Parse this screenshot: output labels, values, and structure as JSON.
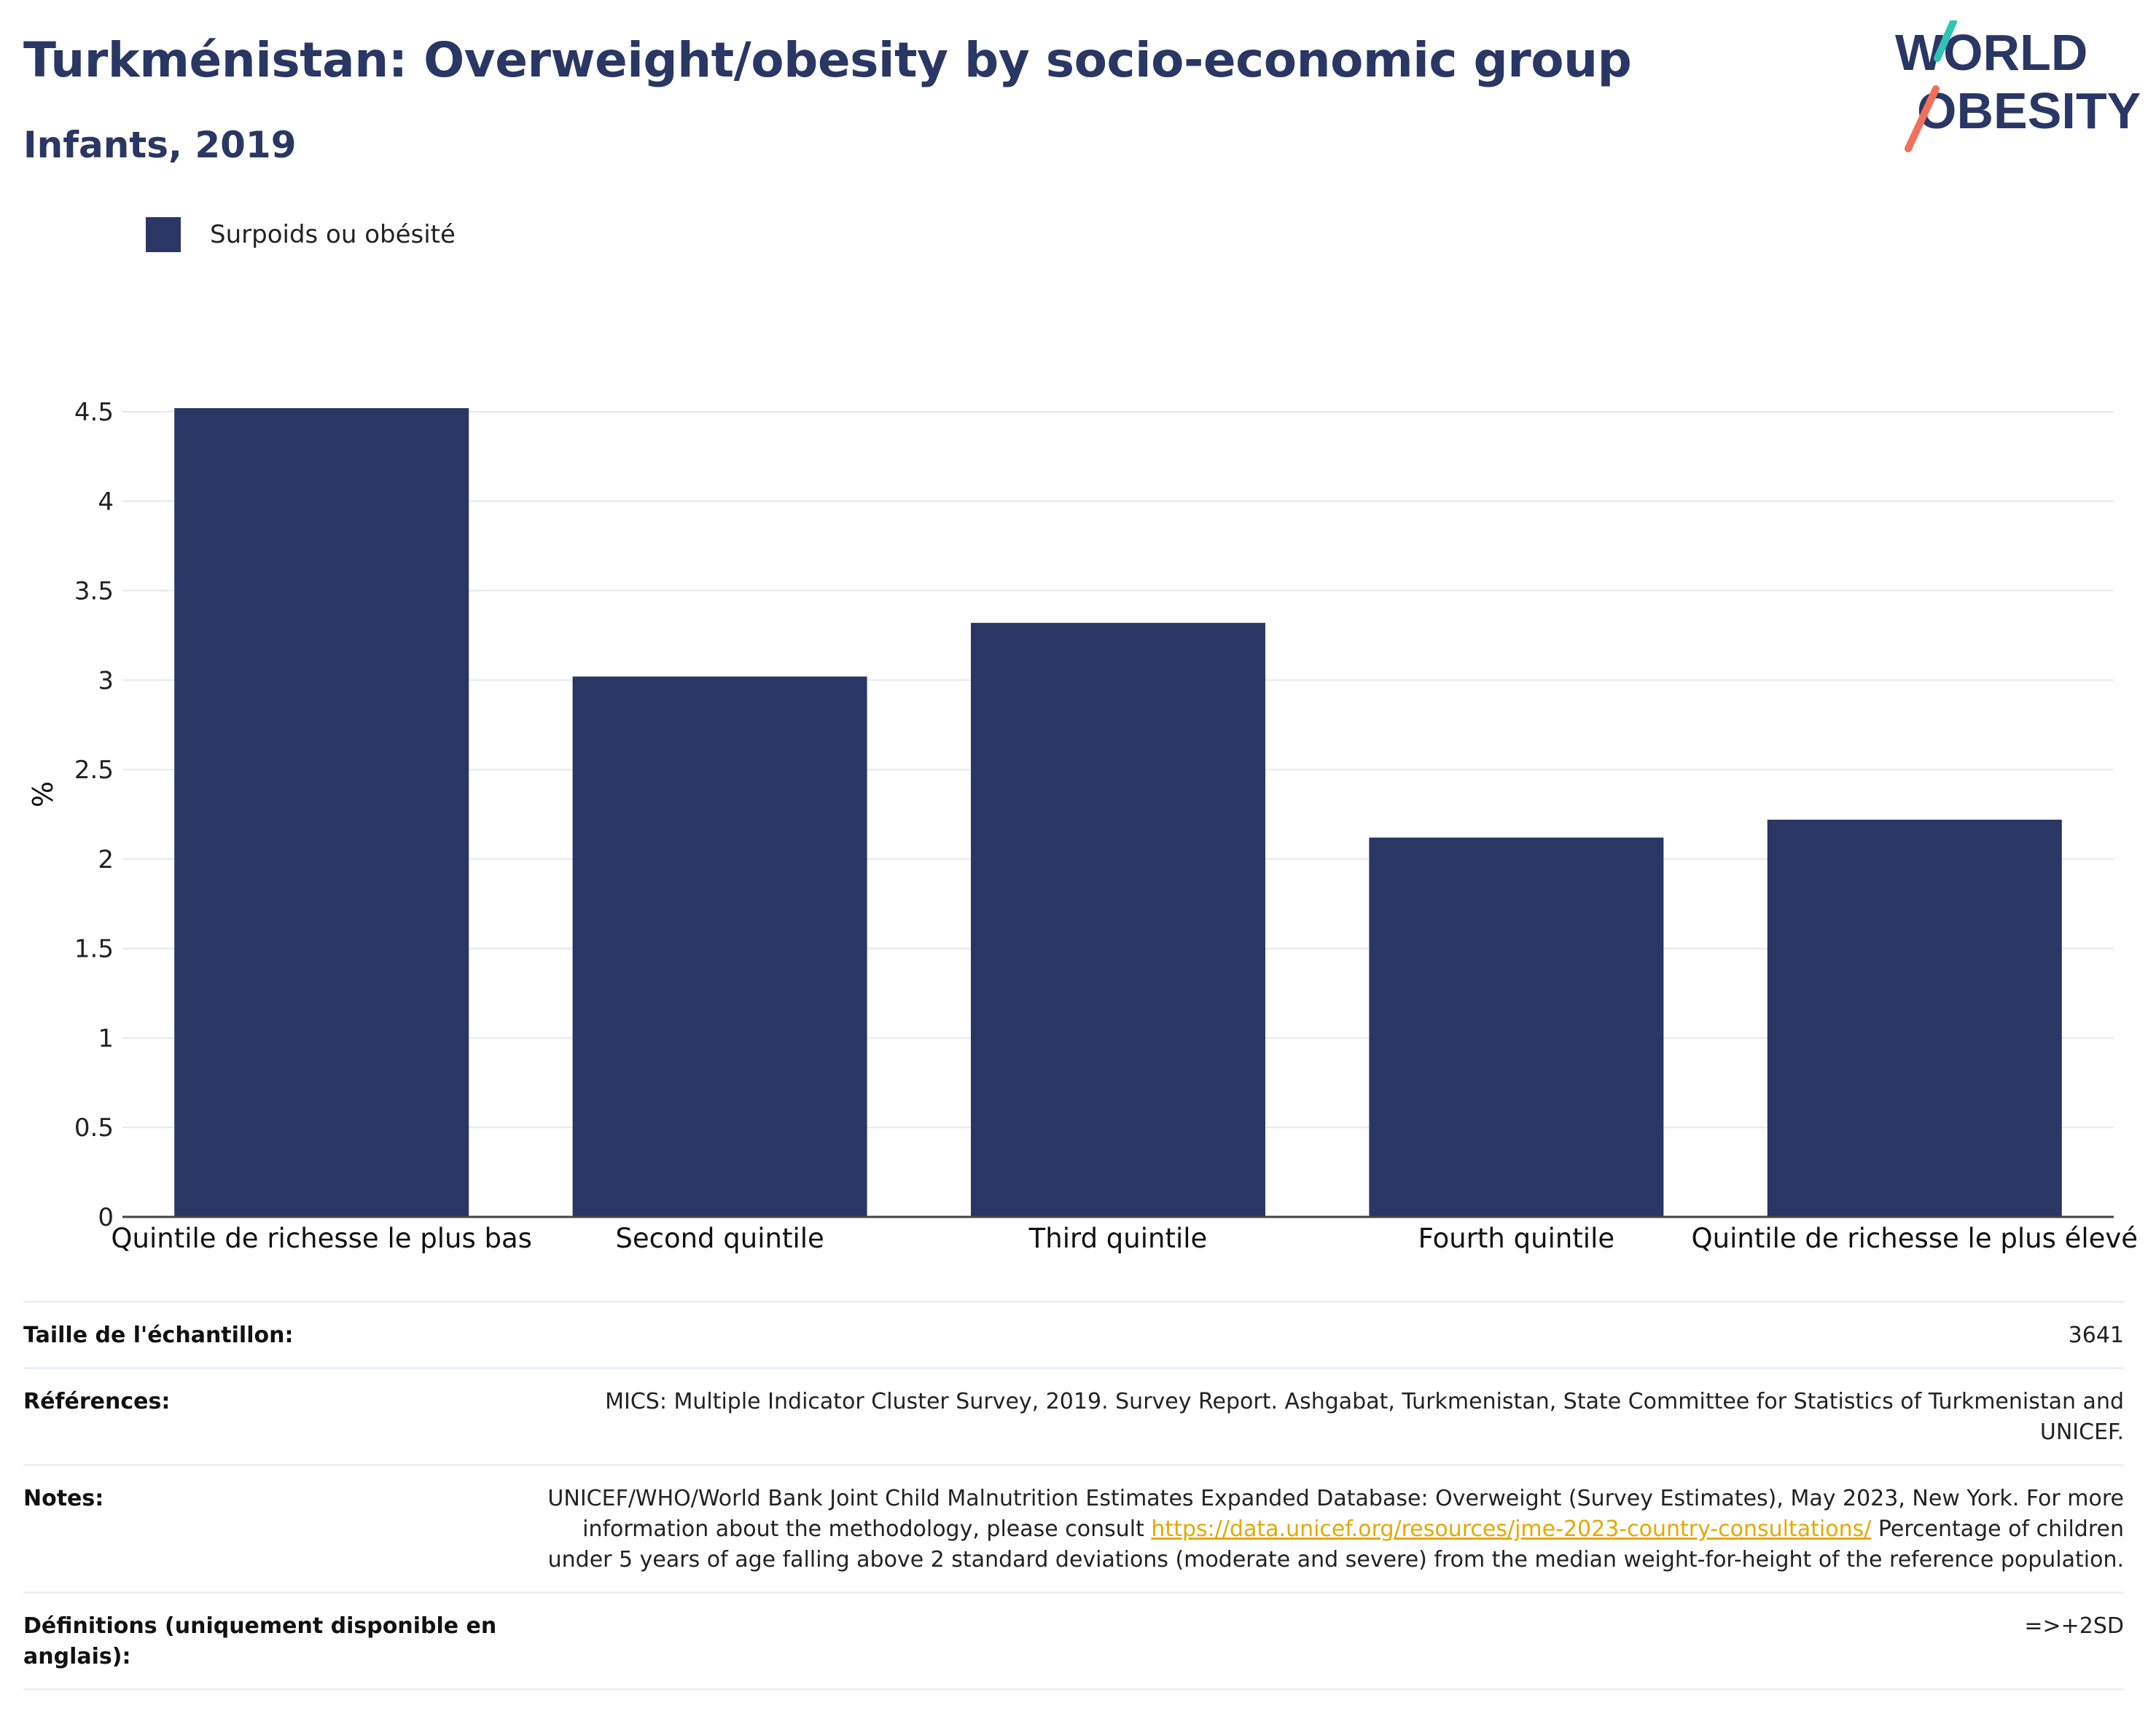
{
  "header": {
    "title": "Turkménistan: Overweight/obesity by socio-economic group",
    "subtitle": "Infants, 2019"
  },
  "logo": {
    "line1": "WORLD",
    "line2": "OBESITY",
    "colors": {
      "text": "#2a3664",
      "slash_top": "#2ec4b6",
      "slash_bottom": "#f0705a"
    }
  },
  "legend": {
    "label": "Surpoids ou obésité",
    "color": "#2a3664"
  },
  "chart_data": {
    "type": "bar",
    "categories": [
      "Quintile de richesse le plus bas",
      "Second quintile",
      "Third quintile",
      "Fourth quintile",
      "Quintile de richesse le plus élevé"
    ],
    "series": [
      {
        "name": "Surpoids ou obésité",
        "values": [
          4.52,
          3.02,
          3.32,
          2.12,
          2.22
        ],
        "color": "#2a3664"
      }
    ],
    "ylabel": "%",
    "ylim": [
      0,
      4.5
    ],
    "yticks": [
      "0",
      "0.5",
      "1",
      "1.5",
      "2",
      "2.5",
      "3",
      "3.5",
      "4",
      "4.5"
    ],
    "grid": true,
    "legend_position": "top-left"
  },
  "meta": {
    "sample_size_label": "Taille de l'échantillon:",
    "sample_size_value": "3641",
    "references_label": "Références:",
    "references_value": "MICS: Multiple Indicator Cluster Survey, 2019. Survey Report. Ashgabat, Turkmenistan, State Committee for Statistics of Turkmenistan and UNICEF.",
    "notes_label": "Notes:",
    "notes_text_1": "UNICEF/WHO/World Bank Joint Child Malnutrition Estimates Expanded Database: Overweight (Survey Estimates), May 2023, New York. For more information about the methodology, please consult",
    "notes_link": "https://data.unicef.org/resources/jme-2023-country-consultations/",
    "notes_text_2": "Percentage of children under 5 years of age falling above 2 standard deviations (moderate and severe) from the median weight-for-height of the reference population.",
    "definitions_label": "Définitions (uniquement disponible en anglais):",
    "definitions_value": "=>+2SD"
  }
}
